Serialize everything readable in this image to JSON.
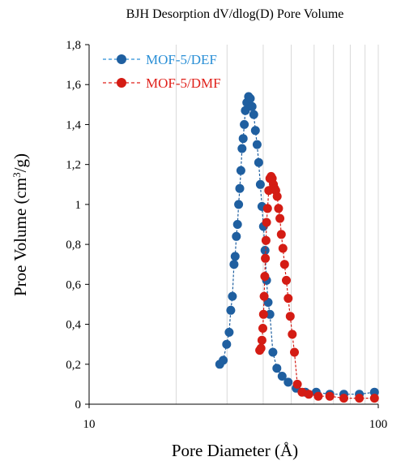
{
  "chart_data": {
    "type": "scatter",
    "title": "BJH Desorption dV/dlog(D) Pore Volume",
    "xlabel": "Pore Diameter  (Å)",
    "ylabel_main": "Proe Volume  (cm",
    "ylabel_sup": "3",
    "ylabel_end": "/g)",
    "x_scale": "log",
    "xlim": [
      10,
      100
    ],
    "ylim": [
      0,
      1.8
    ],
    "x_ticks": [
      10,
      100
    ],
    "x_tick_labels": [
      "10",
      "100"
    ],
    "y_ticks": [
      0,
      0.2,
      0.4,
      0.6,
      0.8,
      1,
      1.2,
      1.4,
      1.6,
      1.8
    ],
    "y_tick_labels": [
      "0",
      "0,2",
      "0,4",
      "0,6",
      "0,8",
      "1",
      "1,2",
      "1,4",
      "1,6",
      "1,8"
    ],
    "grid": "vertical",
    "legend_position": "top-left",
    "series": [
      {
        "name": "MOF-5/DEF",
        "color": "#1f5fa0",
        "legend_color": "#2a8fd6",
        "x": [
          28.3,
          29.1,
          29.9,
          30.5,
          30.9,
          31.3,
          31.7,
          32.0,
          32.3,
          32.6,
          32.9,
          33.2,
          33.5,
          33.8,
          34.1,
          34.4,
          34.7,
          35.1,
          35.6,
          36.1,
          36.6,
          37.1,
          37.6,
          38.1,
          38.6,
          39.1,
          39.6,
          40.1,
          40.6,
          41.1,
          41.6,
          42.2,
          43.2,
          44.6,
          46.5,
          48.8,
          52.0,
          56.0,
          61.0,
          68.0,
          76.0,
          86.0,
          97.0
        ],
        "y": [
          0.2,
          0.22,
          0.3,
          0.36,
          0.47,
          0.54,
          0.7,
          0.74,
          0.84,
          0.9,
          1.0,
          1.08,
          1.17,
          1.28,
          1.33,
          1.4,
          1.47,
          1.51,
          1.54,
          1.53,
          1.49,
          1.45,
          1.37,
          1.3,
          1.21,
          1.1,
          0.99,
          0.89,
          0.77,
          0.62,
          0.51,
          0.45,
          0.26,
          0.18,
          0.14,
          0.11,
          0.08,
          0.06,
          0.06,
          0.05,
          0.05,
          0.05,
          0.06
        ]
      },
      {
        "name": "MOF-5/DMF",
        "color": "#d41c14",
        "legend_color": "#e0201a",
        "x": [
          38.9,
          39.3,
          39.6,
          39.9,
          40.1,
          40.3,
          40.5,
          40.7,
          40.9,
          41.1,
          41.4,
          41.8,
          42.2,
          42.6,
          43.0,
          43.4,
          43.8,
          44.2,
          44.7,
          45.2,
          45.7,
          46.2,
          46.8,
          47.4,
          48.1,
          48.8,
          49.6,
          50.4,
          51.3,
          52.5,
          54.5,
          57.5,
          62.0,
          68.0,
          76.0,
          86.0,
          97.0
        ],
        "y": [
          0.27,
          0.28,
          0.32,
          0.38,
          0.45,
          0.54,
          0.64,
          0.73,
          0.82,
          0.91,
          0.98,
          1.07,
          1.13,
          1.14,
          1.13,
          1.1,
          1.08,
          1.07,
          1.04,
          0.98,
          0.93,
          0.85,
          0.78,
          0.7,
          0.62,
          0.53,
          0.44,
          0.35,
          0.26,
          0.1,
          0.06,
          0.05,
          0.04,
          0.04,
          0.03,
          0.03,
          0.03
        ]
      }
    ]
  }
}
